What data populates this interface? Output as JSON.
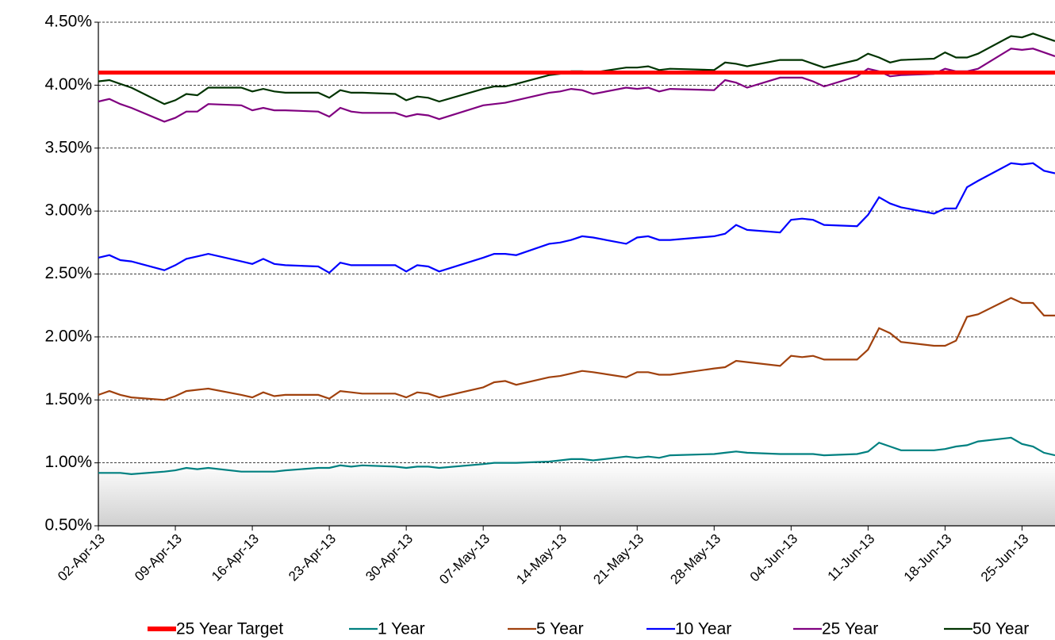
{
  "chart_data": {
    "type": "line",
    "x": [
      "2013-04-02",
      "2013-04-03",
      "2013-04-04",
      "2013-04-05",
      "2013-04-08",
      "2013-04-09",
      "2013-04-10",
      "2013-04-11",
      "2013-04-12",
      "2013-04-15",
      "2013-04-16",
      "2013-04-17",
      "2013-04-18",
      "2013-04-19",
      "2013-04-22",
      "2013-04-23",
      "2013-04-24",
      "2013-04-25",
      "2013-04-26",
      "2013-04-29",
      "2013-04-30",
      "2013-05-01",
      "2013-05-02",
      "2013-05-03",
      "2013-05-07",
      "2013-05-08",
      "2013-05-09",
      "2013-05-10",
      "2013-05-13",
      "2013-05-14",
      "2013-05-15",
      "2013-05-16",
      "2013-05-17",
      "2013-05-20",
      "2013-05-21",
      "2013-05-22",
      "2013-05-23",
      "2013-05-24",
      "2013-05-28",
      "2013-05-29",
      "2013-05-30",
      "2013-05-31",
      "2013-06-03",
      "2013-06-04",
      "2013-06-05",
      "2013-06-06",
      "2013-06-07",
      "2013-06-10",
      "2013-06-11",
      "2013-06-12",
      "2013-06-13",
      "2013-06-14",
      "2013-06-17",
      "2013-06-18",
      "2013-06-19",
      "2013-06-20",
      "2013-06-21",
      "2013-06-24",
      "2013-06-25",
      "2013-06-26",
      "2013-06-27",
      "2013-06-28"
    ],
    "target": {
      "name": "25 Year Target",
      "color": "#ff0000",
      "value": 4.1
    },
    "series": [
      {
        "name": "1 Year",
        "color": "#008080",
        "values": [
          0.92,
          0.92,
          0.92,
          0.91,
          0.93,
          0.94,
          0.96,
          0.95,
          0.96,
          0.93,
          0.93,
          0.93,
          0.93,
          0.94,
          0.96,
          0.96,
          0.98,
          0.97,
          0.98,
          0.97,
          0.96,
          0.97,
          0.97,
          0.96,
          0.99,
          1.0,
          1.0,
          1.0,
          1.01,
          1.02,
          1.03,
          1.03,
          1.02,
          1.05,
          1.04,
          1.05,
          1.04,
          1.06,
          1.07,
          1.08,
          1.09,
          1.08,
          1.07,
          1.07,
          1.07,
          1.07,
          1.06,
          1.07,
          1.09,
          1.16,
          1.13,
          1.1,
          1.1,
          1.11,
          1.13,
          1.14,
          1.17,
          1.2,
          1.15,
          1.13,
          1.08,
          1.06
        ]
      },
      {
        "name": "5 Year",
        "color": "#a0410d",
        "values": [
          1.54,
          1.57,
          1.54,
          1.52,
          1.5,
          1.53,
          1.57,
          1.58,
          1.59,
          1.54,
          1.52,
          1.56,
          1.53,
          1.54,
          1.54,
          1.51,
          1.57,
          1.56,
          1.55,
          1.55,
          1.52,
          1.56,
          1.55,
          1.52,
          1.6,
          1.64,
          1.65,
          1.62,
          1.68,
          1.69,
          1.71,
          1.73,
          1.72,
          1.68,
          1.72,
          1.72,
          1.7,
          1.7,
          1.75,
          1.76,
          1.81,
          1.8,
          1.77,
          1.85,
          1.84,
          1.85,
          1.82,
          1.82,
          1.9,
          2.07,
          2.03,
          1.96,
          1.93,
          1.93,
          1.97,
          2.16,
          2.18,
          2.31,
          2.27,
          2.27,
          2.17,
          2.17
        ]
      },
      {
        "name": "10 Year",
        "color": "#0000ff",
        "values": [
          2.63,
          2.65,
          2.61,
          2.6,
          2.53,
          2.57,
          2.62,
          2.64,
          2.66,
          2.6,
          2.58,
          2.62,
          2.58,
          2.57,
          2.56,
          2.51,
          2.59,
          2.57,
          2.57,
          2.57,
          2.52,
          2.57,
          2.56,
          2.52,
          2.63,
          2.66,
          2.66,
          2.65,
          2.74,
          2.75,
          2.77,
          2.8,
          2.79,
          2.74,
          2.79,
          2.8,
          2.77,
          2.77,
          2.8,
          2.82,
          2.89,
          2.85,
          2.83,
          2.93,
          2.94,
          2.93,
          2.89,
          2.88,
          2.97,
          3.11,
          3.06,
          3.03,
          2.98,
          3.02,
          3.02,
          3.19,
          3.24,
          3.38,
          3.37,
          3.38,
          3.32,
          3.3
        ]
      },
      {
        "name": "25 Year",
        "color": "#800080",
        "values": [
          3.87,
          3.89,
          3.85,
          3.82,
          3.71,
          3.74,
          3.79,
          3.79,
          3.85,
          3.84,
          3.8,
          3.82,
          3.8,
          3.8,
          3.79,
          3.75,
          3.82,
          3.79,
          3.78,
          3.78,
          3.75,
          3.77,
          3.76,
          3.73,
          3.84,
          3.85,
          3.86,
          3.88,
          3.94,
          3.95,
          3.97,
          3.96,
          3.93,
          3.98,
          3.97,
          3.98,
          3.95,
          3.97,
          3.96,
          4.04,
          4.02,
          3.98,
          4.06,
          4.06,
          4.06,
          4.03,
          3.99,
          4.07,
          4.13,
          4.11,
          4.07,
          4.08,
          4.09,
          4.13,
          4.11,
          4.11,
          4.13,
          4.29,
          4.28,
          4.29,
          4.26,
          4.23
        ]
      },
      {
        "name": "50 Year",
        "color": "#003300",
        "values": [
          4.03,
          4.04,
          4.01,
          3.98,
          3.85,
          3.88,
          3.93,
          3.92,
          3.98,
          3.98,
          3.95,
          3.97,
          3.95,
          3.94,
          3.94,
          3.9,
          3.96,
          3.94,
          3.94,
          3.93,
          3.88,
          3.91,
          3.9,
          3.87,
          3.97,
          3.99,
          3.99,
          4.01,
          4.08,
          4.09,
          4.11,
          4.11,
          4.1,
          4.14,
          4.14,
          4.15,
          4.12,
          4.13,
          4.12,
          4.18,
          4.17,
          4.15,
          4.2,
          4.2,
          4.2,
          4.17,
          4.14,
          4.2,
          4.25,
          4.22,
          4.18,
          4.2,
          4.21,
          4.26,
          4.22,
          4.22,
          4.25,
          4.39,
          4.38,
          4.41,
          4.38,
          4.35
        ]
      }
    ],
    "xlim": [
      "2013-04-02",
      "2013-06-28"
    ],
    "xticks": [
      {
        "value": "2013-04-02",
        "label": "02-Apr-13"
      },
      {
        "value": "2013-04-09",
        "label": "09-Apr-13"
      },
      {
        "value": "2013-04-16",
        "label": "16-Apr-13"
      },
      {
        "value": "2013-04-23",
        "label": "23-Apr-13"
      },
      {
        "value": "2013-04-30",
        "label": "30-Apr-13"
      },
      {
        "value": "2013-05-07",
        "label": "07-May-13"
      },
      {
        "value": "2013-05-14",
        "label": "14-May-13"
      },
      {
        "value": "2013-05-21",
        "label": "21-May-13"
      },
      {
        "value": "2013-05-28",
        "label": "28-May-13"
      },
      {
        "value": "2013-06-04",
        "label": "04-Jun-13"
      },
      {
        "value": "2013-06-11",
        "label": "11-Jun-13"
      },
      {
        "value": "2013-06-18",
        "label": "18-Jun-13"
      },
      {
        "value": "2013-06-25",
        "label": "25-Jun-13"
      }
    ],
    "ylim": [
      0.5,
      4.5
    ],
    "yticks": [
      {
        "value": 0.5,
        "label": "0.50%"
      },
      {
        "value": 1.0,
        "label": "1.00%"
      },
      {
        "value": 1.5,
        "label": "1.50%"
      },
      {
        "value": 2.0,
        "label": "2.00%"
      },
      {
        "value": 2.5,
        "label": "2.50%"
      },
      {
        "value": 3.0,
        "label": "3.00%"
      },
      {
        "value": 3.5,
        "label": "3.50%"
      },
      {
        "value": 4.0,
        "label": "4.00%"
      },
      {
        "value": 4.5,
        "label": "4.50%"
      }
    ],
    "grid": true
  }
}
